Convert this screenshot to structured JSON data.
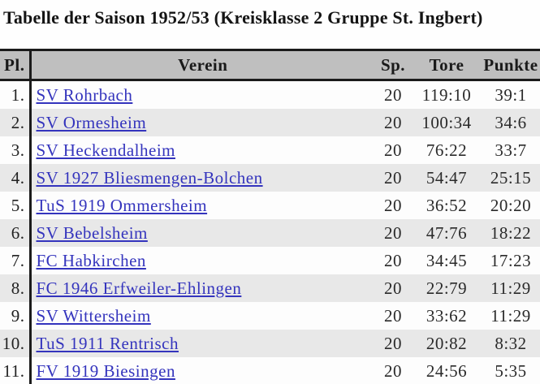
{
  "title": "Tabelle der Saison 1952/53 (Kreisklasse 2 Gruppe St. Ingbert)",
  "standings": {
    "headers": {
      "position": "Pl.",
      "club": "Verein",
      "games": "Sp.",
      "goals": "Tore",
      "points": "Punkte"
    },
    "rows": [
      {
        "pl": "1.",
        "verein": "SV Rohrbach",
        "sp": "20",
        "tore": "119:10",
        "punkte": "39:1"
      },
      {
        "pl": "2.",
        "verein": "SV Ormesheim",
        "sp": "20",
        "tore": "100:34",
        "punkte": "34:6"
      },
      {
        "pl": "3.",
        "verein": "SV Heckendalheim",
        "sp": "20",
        "tore": "76:22",
        "punkte": "33:7"
      },
      {
        "pl": "4.",
        "verein": "SV 1927 Bliesmengen-Bolchen",
        "sp": "20",
        "tore": "54:47",
        "punkte": "25:15"
      },
      {
        "pl": "5.",
        "verein": "TuS 1919 Ommersheim",
        "sp": "20",
        "tore": "36:52",
        "punkte": "20:20"
      },
      {
        "pl": "6.",
        "verein": "SV Bebelsheim",
        "sp": "20",
        "tore": "47:76",
        "punkte": "18:22"
      },
      {
        "pl": "7.",
        "verein": "FC Habkirchen",
        "sp": "20",
        "tore": "34:45",
        "punkte": "17:23"
      },
      {
        "pl": "8.",
        "verein": "FC 1946 Erfweiler-Ehlingen",
        "sp": "20",
        "tore": "22:79",
        "punkte": "11:29"
      },
      {
        "pl": "9.",
        "verein": "SV Wittersheim",
        "sp": "20",
        "tore": "33:62",
        "punkte": "11:29"
      },
      {
        "pl": "10.",
        "verein": "TuS 1911 Rentrisch",
        "sp": "20",
        "tore": "20:82",
        "punkte": "8:32"
      },
      {
        "pl": "11.",
        "verein": "FV 1919 Biesingen",
        "sp": "20",
        "tore": "24:56",
        "punkte": "5:35"
      }
    ]
  },
  "colors": {
    "header_bg": "#bfbfbf",
    "row_odd_bg": "#e8e8e8",
    "row_even_bg": "#fdfdfd",
    "link_blue": "#3434bd",
    "rule_black": "#1b1b1b"
  }
}
